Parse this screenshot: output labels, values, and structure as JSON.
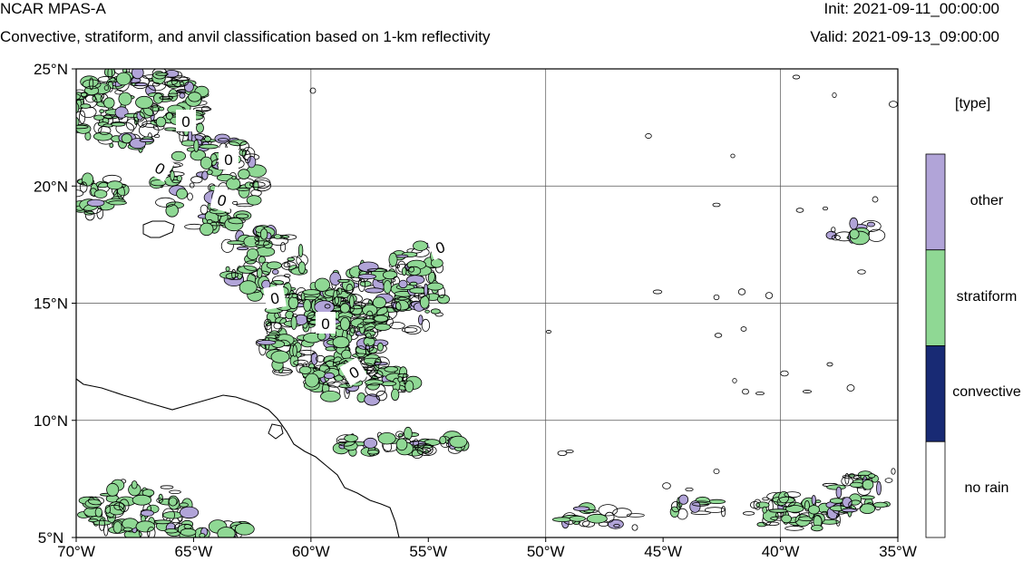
{
  "header": {
    "title": "NCAR MPAS-A",
    "subtitle": "Convective, stratiform, and anvil classification based on 1-km reflectivity",
    "init": "Init: 2021-09-11_00:00:00",
    "valid": "Valid: 2021-09-13_09:00:00"
  },
  "map": {
    "lon_range": [
      -70,
      -35
    ],
    "lat_range": [
      5,
      25
    ],
    "x_ticks": [
      {
        "lon": -70,
        "label": "70°W"
      },
      {
        "lon": -65,
        "label": "65°W"
      },
      {
        "lon": -60,
        "label": "60°W"
      },
      {
        "lon": -55,
        "label": "55°W"
      },
      {
        "lon": -50,
        "label": "50°W"
      },
      {
        "lon": -45,
        "label": "45°W"
      },
      {
        "lon": -40,
        "label": "40°W"
      },
      {
        "lon": -35,
        "label": "35°W"
      }
    ],
    "y_ticks": [
      {
        "lat": 25,
        "label": "25°N"
      },
      {
        "lat": 20,
        "label": "20°N"
      },
      {
        "lat": 15,
        "label": "15°N"
      },
      {
        "lat": 10,
        "label": "10°N"
      },
      {
        "lat": 5,
        "label": "5°N"
      }
    ],
    "gridlines_lon": [
      -60,
      -50,
      -40
    ],
    "gridlines_lat": [
      20,
      15,
      10
    ],
    "contour_label": "0",
    "colors": {
      "stratiform": "#8fd894",
      "other": "#b1a4d8",
      "convective": "#182a74",
      "coast": "#000000"
    }
  },
  "legend": {
    "title": "[type]",
    "items": [
      {
        "label": "other",
        "color": "#b1a4d8"
      },
      {
        "label": "stratiform",
        "color": "#8fd894"
      },
      {
        "label": "convective",
        "color": "#182a74"
      },
      {
        "label": "no rain",
        "color": "#ffffff"
      }
    ]
  }
}
